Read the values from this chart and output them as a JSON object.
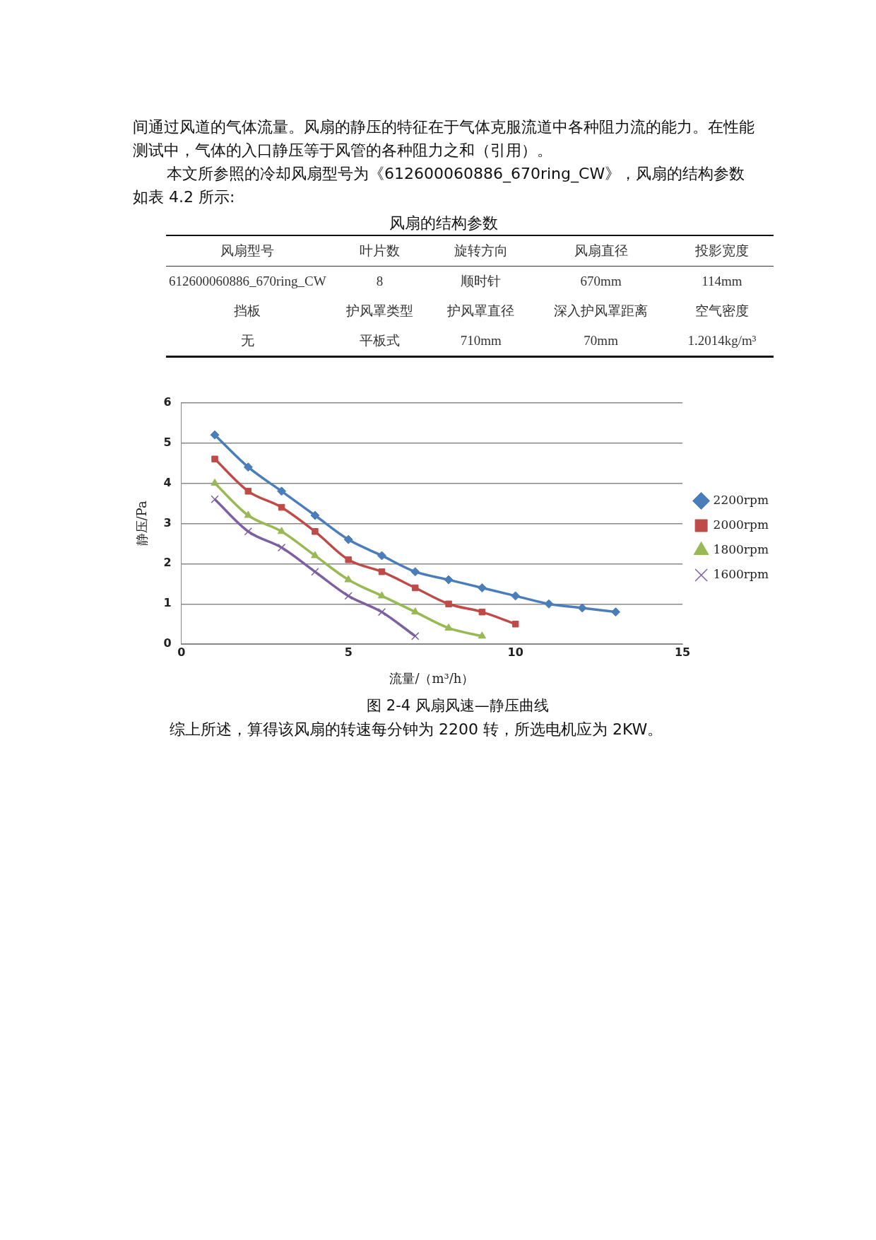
{
  "chart_data": {
    "type": "line",
    "title": "图 2-4 风扇风速—静压曲线",
    "xlabel": "流量/（m³/h）",
    "ylabel": "静压/Pa",
    "xlim": [
      0,
      15
    ],
    "xticks": [
      0,
      5,
      10,
      15
    ],
    "ylim": [
      0,
      6
    ],
    "yticks": [
      0,
      1,
      2,
      3,
      4,
      5,
      6
    ],
    "grid": "y",
    "legend": "right",
    "series": [
      {
        "name": "2200rpm",
        "color": "#4a7ebb",
        "marker": "diamond",
        "x": [
          1,
          2,
          3,
          4,
          5,
          6,
          7,
          8,
          9,
          10,
          11,
          12,
          13
        ],
        "values": [
          5.2,
          4.4,
          3.8,
          3.2,
          2.6,
          2.2,
          1.8,
          1.6,
          1.4,
          1.2,
          1.0,
          0.9,
          0.8
        ]
      },
      {
        "name": "2000rpm",
        "color": "#be4b48",
        "marker": "square",
        "x": [
          1,
          2,
          3,
          4,
          5,
          6,
          7,
          8,
          9,
          10
        ],
        "values": [
          4.6,
          3.8,
          3.4,
          2.8,
          2.1,
          1.8,
          1.4,
          1.0,
          0.8,
          0.5
        ]
      },
      {
        "name": "1800rpm",
        "color": "#98b954",
        "marker": "triangle",
        "x": [
          1,
          2,
          3,
          4,
          5,
          6,
          7,
          8,
          9
        ],
        "values": [
          4.0,
          3.2,
          2.8,
          2.2,
          1.6,
          1.2,
          0.8,
          0.4,
          0.2
        ]
      },
      {
        "name": "1600rpm",
        "color": "#7d60a0",
        "marker": "cross",
        "x": [
          1,
          2,
          3,
          4,
          5,
          6,
          7
        ],
        "values": [
          3.6,
          2.8,
          2.4,
          1.8,
          1.2,
          0.8,
          0.2
        ]
      }
    ],
    "annotations": [
      "间通过风道的气体流量。风扇的静压的特征在于气体克服流道中各种阻力流的能力。在性能测试中，气体的入口静压等于风管的各种阻力之和（引用）。",
      "本文所参照的冷却风扇型号为《612600060886_670ring_CW》，风扇的结构参数如表 4.2 所示:",
      "风扇的结构参数",
      "风扇型号",
      "叶片数",
      "旋转方向",
      "风扇直径",
      "投影宽度",
      "612600060886_670ring_CW",
      "8",
      "顺时针",
      "670mm",
      "114mm",
      "挡板",
      "护风罩类型",
      "护风罩直径",
      "深入护风罩距离",
      "空气密度",
      "无",
      "平板式",
      "710mm",
      "70mm",
      "1.2014kg/m³",
      "综上所述，算得该风扇的转速每分钟为 2200 转，所选电机应为 2KW。"
    ]
  }
}
